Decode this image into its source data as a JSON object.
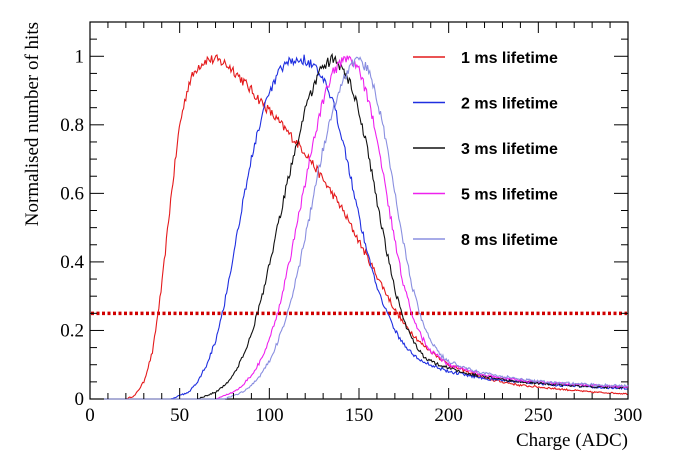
{
  "chart_data": {
    "type": "line",
    "title": "",
    "xlabel": "Charge (ADC)",
    "ylabel": "Normalised number of hits",
    "xlim": [
      0,
      300
    ],
    "ylim": [
      0,
      1.1
    ],
    "x_ticks": [
      "0",
      "50",
      "100",
      "150",
      "200",
      "250",
      "300"
    ],
    "y_ticks": [
      "0",
      "0.2",
      "0.4",
      "0.6",
      "0.8",
      "1"
    ],
    "grid": false,
    "legend_position": "top-right",
    "reference_line": {
      "y": 0.25,
      "color": "#d00000",
      "style": "dotted"
    },
    "x": [
      0,
      10,
      20,
      25,
      30,
      35,
      40,
      45,
      50,
      55,
      60,
      65,
      70,
      75,
      80,
      85,
      90,
      95,
      100,
      105,
      110,
      115,
      120,
      125,
      130,
      135,
      140,
      145,
      150,
      155,
      160,
      165,
      170,
      175,
      180,
      185,
      190,
      195,
      200,
      210,
      220,
      230,
      240,
      250,
      260,
      270,
      280,
      290,
      300
    ],
    "series": [
      {
        "name": "1 ms lifetime",
        "color": "#e41a1c",
        "values": [
          0,
          0,
          0,
          0.01,
          0.05,
          0.14,
          0.33,
          0.58,
          0.8,
          0.92,
          0.97,
          0.99,
          0.99,
          0.98,
          0.96,
          0.93,
          0.9,
          0.87,
          0.84,
          0.81,
          0.78,
          0.75,
          0.72,
          0.68,
          0.64,
          0.6,
          0.56,
          0.51,
          0.46,
          0.41,
          0.36,
          0.31,
          0.26,
          0.22,
          0.19,
          0.16,
          0.14,
          0.12,
          0.1,
          0.08,
          0.06,
          0.05,
          0.04,
          0.035,
          0.03,
          0.025,
          0.02,
          0.018,
          0.015
        ]
      },
      {
        "name": "2 ms lifetime",
        "color": "#1f2fe0",
        "values": [
          0,
          0,
          0,
          0,
          0,
          0,
          0,
          0,
          0.01,
          0.02,
          0.05,
          0.1,
          0.17,
          0.28,
          0.42,
          0.57,
          0.7,
          0.81,
          0.89,
          0.95,
          0.98,
          0.99,
          0.99,
          0.97,
          0.93,
          0.87,
          0.78,
          0.66,
          0.53,
          0.42,
          0.33,
          0.26,
          0.2,
          0.16,
          0.13,
          0.11,
          0.1,
          0.09,
          0.08,
          0.07,
          0.06,
          0.055,
          0.05,
          0.045,
          0.04,
          0.038,
          0.035,
          0.033,
          0.03
        ]
      },
      {
        "name": "3 ms lifetime",
        "color": "#111111",
        "values": [
          0,
          0,
          0,
          0,
          0,
          0,
          0,
          0,
          0,
          0,
          0,
          0.01,
          0.02,
          0.04,
          0.07,
          0.12,
          0.19,
          0.28,
          0.39,
          0.51,
          0.63,
          0.74,
          0.84,
          0.92,
          0.97,
          0.99,
          0.97,
          0.92,
          0.84,
          0.72,
          0.58,
          0.44,
          0.32,
          0.23,
          0.17,
          0.13,
          0.11,
          0.1,
          0.09,
          0.075,
          0.065,
          0.057,
          0.05,
          0.046,
          0.042,
          0.039,
          0.036,
          0.034,
          0.032
        ]
      },
      {
        "name": "5 ms lifetime",
        "color": "#ee22ee",
        "values": [
          0,
          0,
          0,
          0,
          0,
          0,
          0,
          0,
          0,
          0,
          0,
          0,
          0,
          0.01,
          0.02,
          0.04,
          0.07,
          0.11,
          0.17,
          0.26,
          0.37,
          0.5,
          0.63,
          0.76,
          0.87,
          0.95,
          0.98,
          0.99,
          0.96,
          0.88,
          0.76,
          0.61,
          0.46,
          0.33,
          0.24,
          0.18,
          0.14,
          0.12,
          0.1,
          0.085,
          0.07,
          0.062,
          0.055,
          0.05,
          0.046,
          0.043,
          0.04,
          0.038,
          0.036
        ]
      },
      {
        "name": "8 ms lifetime",
        "color": "#8a8fe0",
        "values": [
          0,
          0,
          0,
          0,
          0,
          0,
          0,
          0,
          0,
          0,
          0,
          0,
          0,
          0,
          0.01,
          0.02,
          0.04,
          0.07,
          0.11,
          0.17,
          0.25,
          0.35,
          0.47,
          0.6,
          0.73,
          0.84,
          0.92,
          0.97,
          0.99,
          0.96,
          0.88,
          0.75,
          0.6,
          0.45,
          0.32,
          0.23,
          0.17,
          0.13,
          0.11,
          0.09,
          0.075,
          0.066,
          0.058,
          0.052,
          0.048,
          0.045,
          0.042,
          0.04,
          0.038
        ]
      }
    ]
  }
}
